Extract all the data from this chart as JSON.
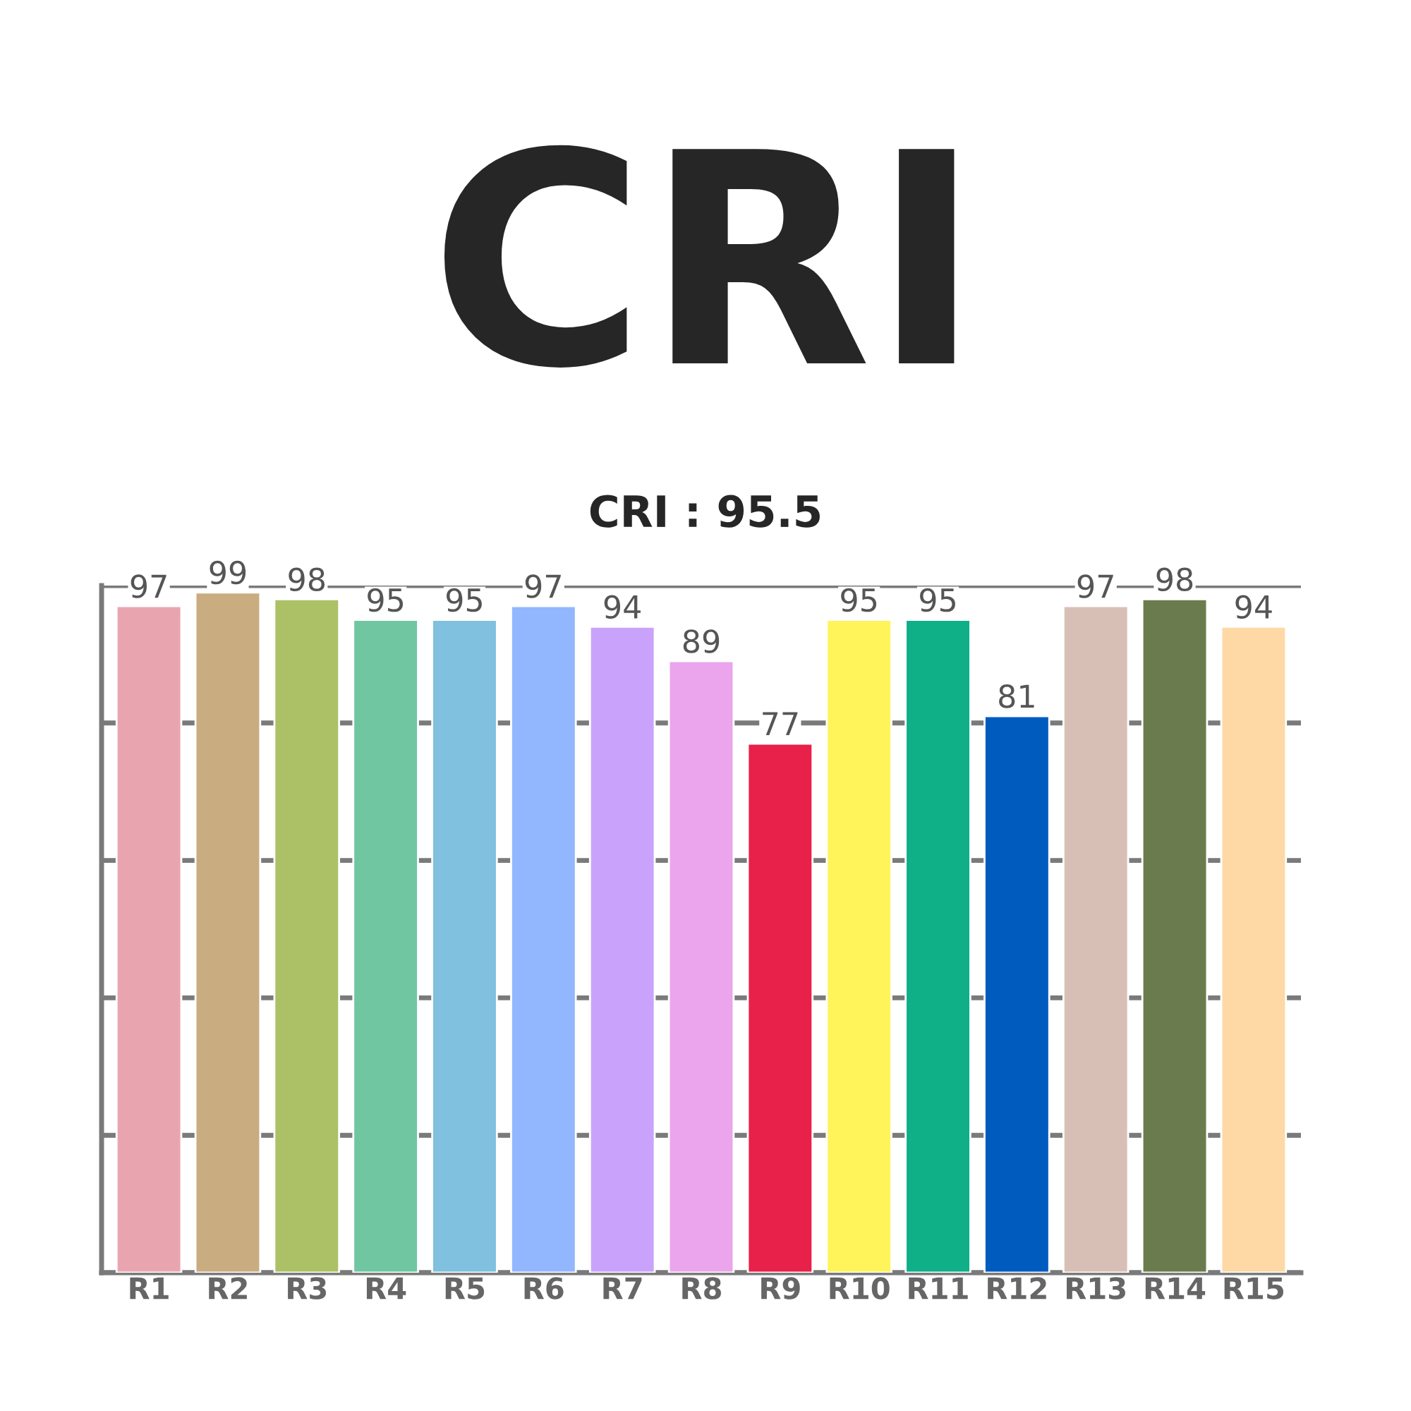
{
  "chart_data": {
    "type": "bar",
    "title": "CRI",
    "subtitle": "CRI : 95.5",
    "categories": [
      "R1",
      "R2",
      "R3",
      "R4",
      "R5",
      "R6",
      "R7",
      "R8",
      "R9",
      "R10",
      "R11",
      "R12",
      "R13",
      "R14",
      "R15"
    ],
    "values": [
      97,
      99,
      98,
      95,
      95,
      97,
      94,
      89,
      77,
      95,
      95,
      81,
      97,
      98,
      94
    ],
    "colors": [
      "#e8a5b0",
      "#c9ac80",
      "#acc166",
      "#6fc6a0",
      "#7fc1de",
      "#93b7ff",
      "#c9a3fb",
      "#eba5ec",
      "#e8214a",
      "#fff45a",
      "#0faf88",
      "#005bbf",
      "#d8bfb6",
      "#6a7c4d",
      "#fed9a6"
    ],
    "ylim": [
      0,
      100
    ],
    "yticks": [
      {
        "value": 0,
        "label": null
      },
      {
        "value": 20,
        "label": null
      },
      {
        "value": 40,
        "label": null
      },
      {
        "value": 60,
        "label": null
      },
      {
        "value": 80,
        "label": null
      },
      {
        "value": 100,
        "label": null
      }
    ],
    "grid": "y",
    "tick_labels": "x",
    "data_labels": true
  }
}
